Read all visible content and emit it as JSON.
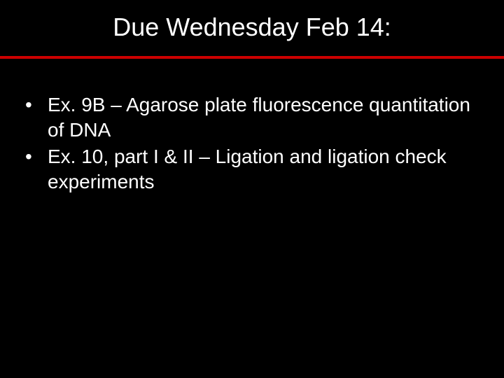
{
  "slide": {
    "title": "Due Wednesday Feb 14:",
    "bullets": [
      {
        "text": "Ex. 9B – Agarose plate fluorescence quantitation of DNA"
      },
      {
        "text": "Ex. 10, part I & II – Ligation and ligation check experiments"
      }
    ]
  },
  "style": {
    "background_color": "#000000",
    "text_color": "#ffffff",
    "divider_color": "#cc0000",
    "title_fontsize": 36,
    "body_fontsize": 28,
    "font_family": "Arial"
  }
}
